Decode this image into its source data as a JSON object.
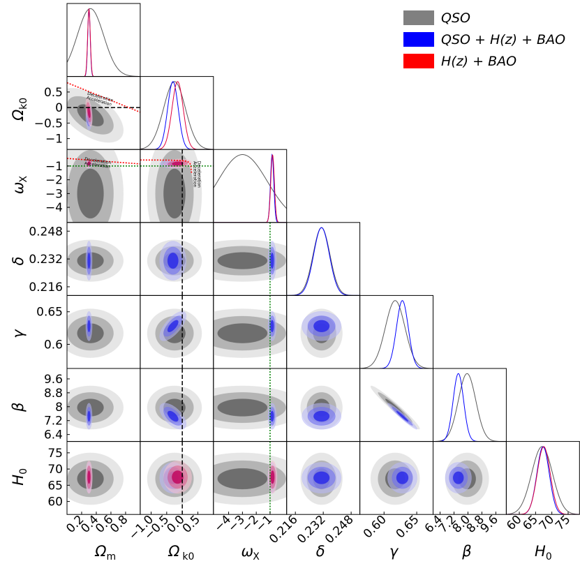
{
  "chart_data": {
    "type": "corner",
    "title": "",
    "parameters": [
      {
        "id": "Om",
        "main": "Ω",
        "sub": "m",
        "range": [
          0.0,
          1.0
        ],
        "xticks": [
          "0.2",
          "0.4",
          "0.6",
          "0.8"
        ],
        "xtick_vals": [
          0.2,
          0.4,
          0.6,
          0.8
        ]
      },
      {
        "id": "Ok0",
        "main": "Ω",
        "sub": "k0",
        "range": [
          -1.35,
          1.0
        ],
        "xticks": [
          "−1.0",
          "−0.5",
          "0.0",
          "0.5"
        ],
        "xtick_vals": [
          -1.0,
          -0.5,
          0.0,
          0.5
        ],
        "yticks": [
          "0.5",
          "0",
          "−0.5",
          "−1"
        ],
        "ytick_vals": [
          0.5,
          0.0,
          -0.5,
          -1.0
        ]
      },
      {
        "id": "wX",
        "main": "ω",
        "sub": "X",
        "range": [
          -5.1,
          0.2
        ],
        "xticks": [
          "−4",
          "−3",
          "−2",
          "−1"
        ],
        "xtick_vals": [
          -4,
          -3,
          -2,
          -1
        ],
        "yticks": [
          "−1",
          "−2",
          "−3",
          "−4"
        ],
        "ytick_vals": [
          -1,
          -2,
          -3,
          -4
        ]
      },
      {
        "id": "delta",
        "main": "δ",
        "sub": "",
        "range": [
          0.211,
          0.253
        ],
        "xticks": [
          "0.216",
          "0.232",
          "0.248"
        ],
        "xtick_vals": [
          0.216,
          0.232,
          0.248
        ],
        "yticks": [
          "0.248",
          "0.232",
          "0.216"
        ],
        "ytick_vals": [
          0.248,
          0.232,
          0.216
        ]
      },
      {
        "id": "gamma",
        "main": "γ",
        "sub": "",
        "range": [
          0.563,
          0.675
        ],
        "xticks": [
          "0.60",
          "0.65"
        ],
        "xtick_vals": [
          0.6,
          0.65
        ],
        "yticks": [
          "0.65",
          "0.6"
        ],
        "ytick_vals": [
          0.65,
          0.6
        ]
      },
      {
        "id": "beta",
        "main": "β",
        "sub": "",
        "range": [
          6.0,
          10.2
        ],
        "xticks": [
          "6.4",
          "7.2",
          "8.0",
          "8.8",
          "9.6"
        ],
        "xtick_vals": [
          6.4,
          7.2,
          8.0,
          8.8,
          9.6
        ],
        "yticks": [
          "9.6",
          "8.8",
          "8",
          "7.2",
          "6.4"
        ],
        "ytick_vals": [
          9.6,
          8.8,
          8.0,
          7.2,
          6.4
        ]
      },
      {
        "id": "H0",
        "main": "H",
        "sub": "0",
        "range": [
          56.0,
          78.5
        ],
        "xticks": [
          "60",
          "65",
          "70",
          "75"
        ],
        "xtick_vals": [
          60,
          65,
          70,
          75
        ],
        "yticks": [
          "75",
          "70",
          "65",
          "60"
        ],
        "ytick_vals": [
          75,
          70,
          65,
          60
        ]
      }
    ],
    "legend": {
      "placement": "top-right",
      "entries": [
        {
          "label": "QSO",
          "color": "#808080"
        },
        {
          "label": "QSO + H(z) + BAO",
          "color": "#0000ff"
        },
        {
          "label": "H(z) + BAO",
          "color": "#ff0000"
        }
      ]
    },
    "series": [
      {
        "name": "QSO",
        "color": "#5a5a5a",
        "fill1": "#6e6e6e",
        "fill2": "#b4b4b4",
        "fill3": "#e6e6e6",
        "mean": {
          "Om": 0.32,
          "Ok0": -0.25,
          "wX": -3.0,
          "delta": 0.231,
          "gamma": 0.617,
          "beta": 7.95,
          "H0": 67.0
        },
        "sigma": {
          "Om": 0.18,
          "Ok0": 0.35,
          "wX": 1.8,
          "delta": 0.0048,
          "gamma": 0.015,
          "beta": 0.5,
          "H0": 3.2
        }
      },
      {
        "name": "QSO + H(z) + BAO",
        "color": "#0000ff",
        "fill1": "#2626e8",
        "fill2": "#7070f0",
        "fill3": "#b8b8f8",
        "mean": {
          "Om": 0.3,
          "Ok0": -0.3,
          "wX": -0.85,
          "delta": 0.231,
          "gamma": 0.628,
          "beta": 7.45,
          "H0": 67.3
        },
        "sigma": {
          "Om": 0.017,
          "Ok0": 0.17,
          "wX": 0.12,
          "delta": 0.0045,
          "gamma": 0.009,
          "beta": 0.3,
          "H0": 1.9
        }
      },
      {
        "name": "H(z) + BAO",
        "color": "#e0003c",
        "fill1": "#c0005a",
        "fill2": "#e0608a",
        "fill3": "#f5c0d0",
        "mean": {
          "Om": 0.3,
          "Ok0": -0.15,
          "wX": -0.82,
          "H0": 67.5
        },
        "sigma": {
          "Om": 0.018,
          "Ok0": 0.18,
          "wX": 0.13,
          "H0": 2.0
        }
      }
    ],
    "correlations": [
      {
        "pair": [
          "Om",
          "Ok0"
        ],
        "series": "QSO",
        "rho": -0.55
      },
      {
        "pair": [
          "Om",
          "Ok0"
        ],
        "series": "H(z) + BAO",
        "rho": -0.5
      },
      {
        "pair": [
          "Om",
          "wX"
        ],
        "series": "H(z) + BAO",
        "rho": 0.3
      },
      {
        "pair": [
          "Ok0",
          "wX"
        ],
        "series": "H(z) + BAO",
        "rho": 0.2
      },
      {
        "pair": [
          "Ok0",
          "gamma"
        ],
        "series": "QSO + H(z) + BAO",
        "rho": 0.7
      },
      {
        "pair": [
          "Ok0",
          "beta"
        ],
        "series": "QSO + H(z) + BAO",
        "rho": -0.6
      },
      {
        "pair": [
          "gamma",
          "beta"
        ],
        "series": "QSO",
        "rho": -0.97
      },
      {
        "pair": [
          "gamma",
          "beta"
        ],
        "series": "QSO + H(z) + BAO",
        "rho": -0.97
      }
    ],
    "reference_lines": [
      {
        "param": "Ok0",
        "value": 0.0,
        "style": "dashed",
        "color": "#000000"
      },
      {
        "param": "wX",
        "value": -1.0,
        "style": "dotted",
        "color": "#008000"
      }
    ],
    "annotations": {
      "upper": "Deceleration",
      "lower": "Acceleration",
      "curve_color": "#ff0000"
    }
  }
}
